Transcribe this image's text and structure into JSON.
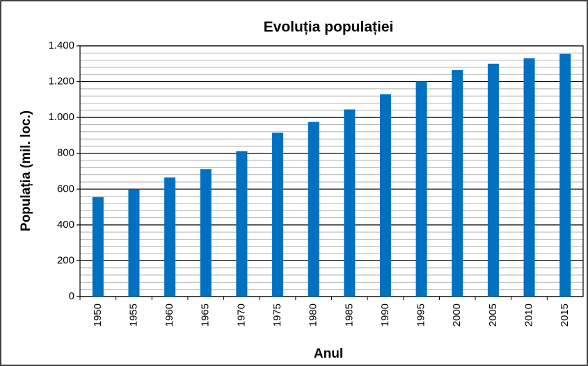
{
  "chart_data": {
    "type": "bar",
    "title": "Evoluția populației",
    "x_label": "Anul",
    "y_label": "Populația (mil. loc.)",
    "categories": [
      "1950",
      "1955",
      "1960",
      "1965",
      "1970",
      "1975",
      "1980",
      "1985",
      "1990",
      "1995",
      "2000",
      "2005",
      "2010",
      "2015"
    ],
    "values": [
      555,
      600,
      665,
      712,
      812,
      915,
      975,
      1045,
      1130,
      1200,
      1265,
      1300,
      1330,
      1355
    ],
    "color": "#0070c0",
    "ylim": [
      0,
      1400
    ],
    "yticks": [
      0,
      200,
      400,
      600,
      800,
      {
        "value": 1000,
        "label": "1.000"
      },
      {
        "value": 1200,
        "label": "1.200"
      },
      {
        "value": 1400,
        "label": "1.400"
      }
    ],
    "grid": true
  }
}
